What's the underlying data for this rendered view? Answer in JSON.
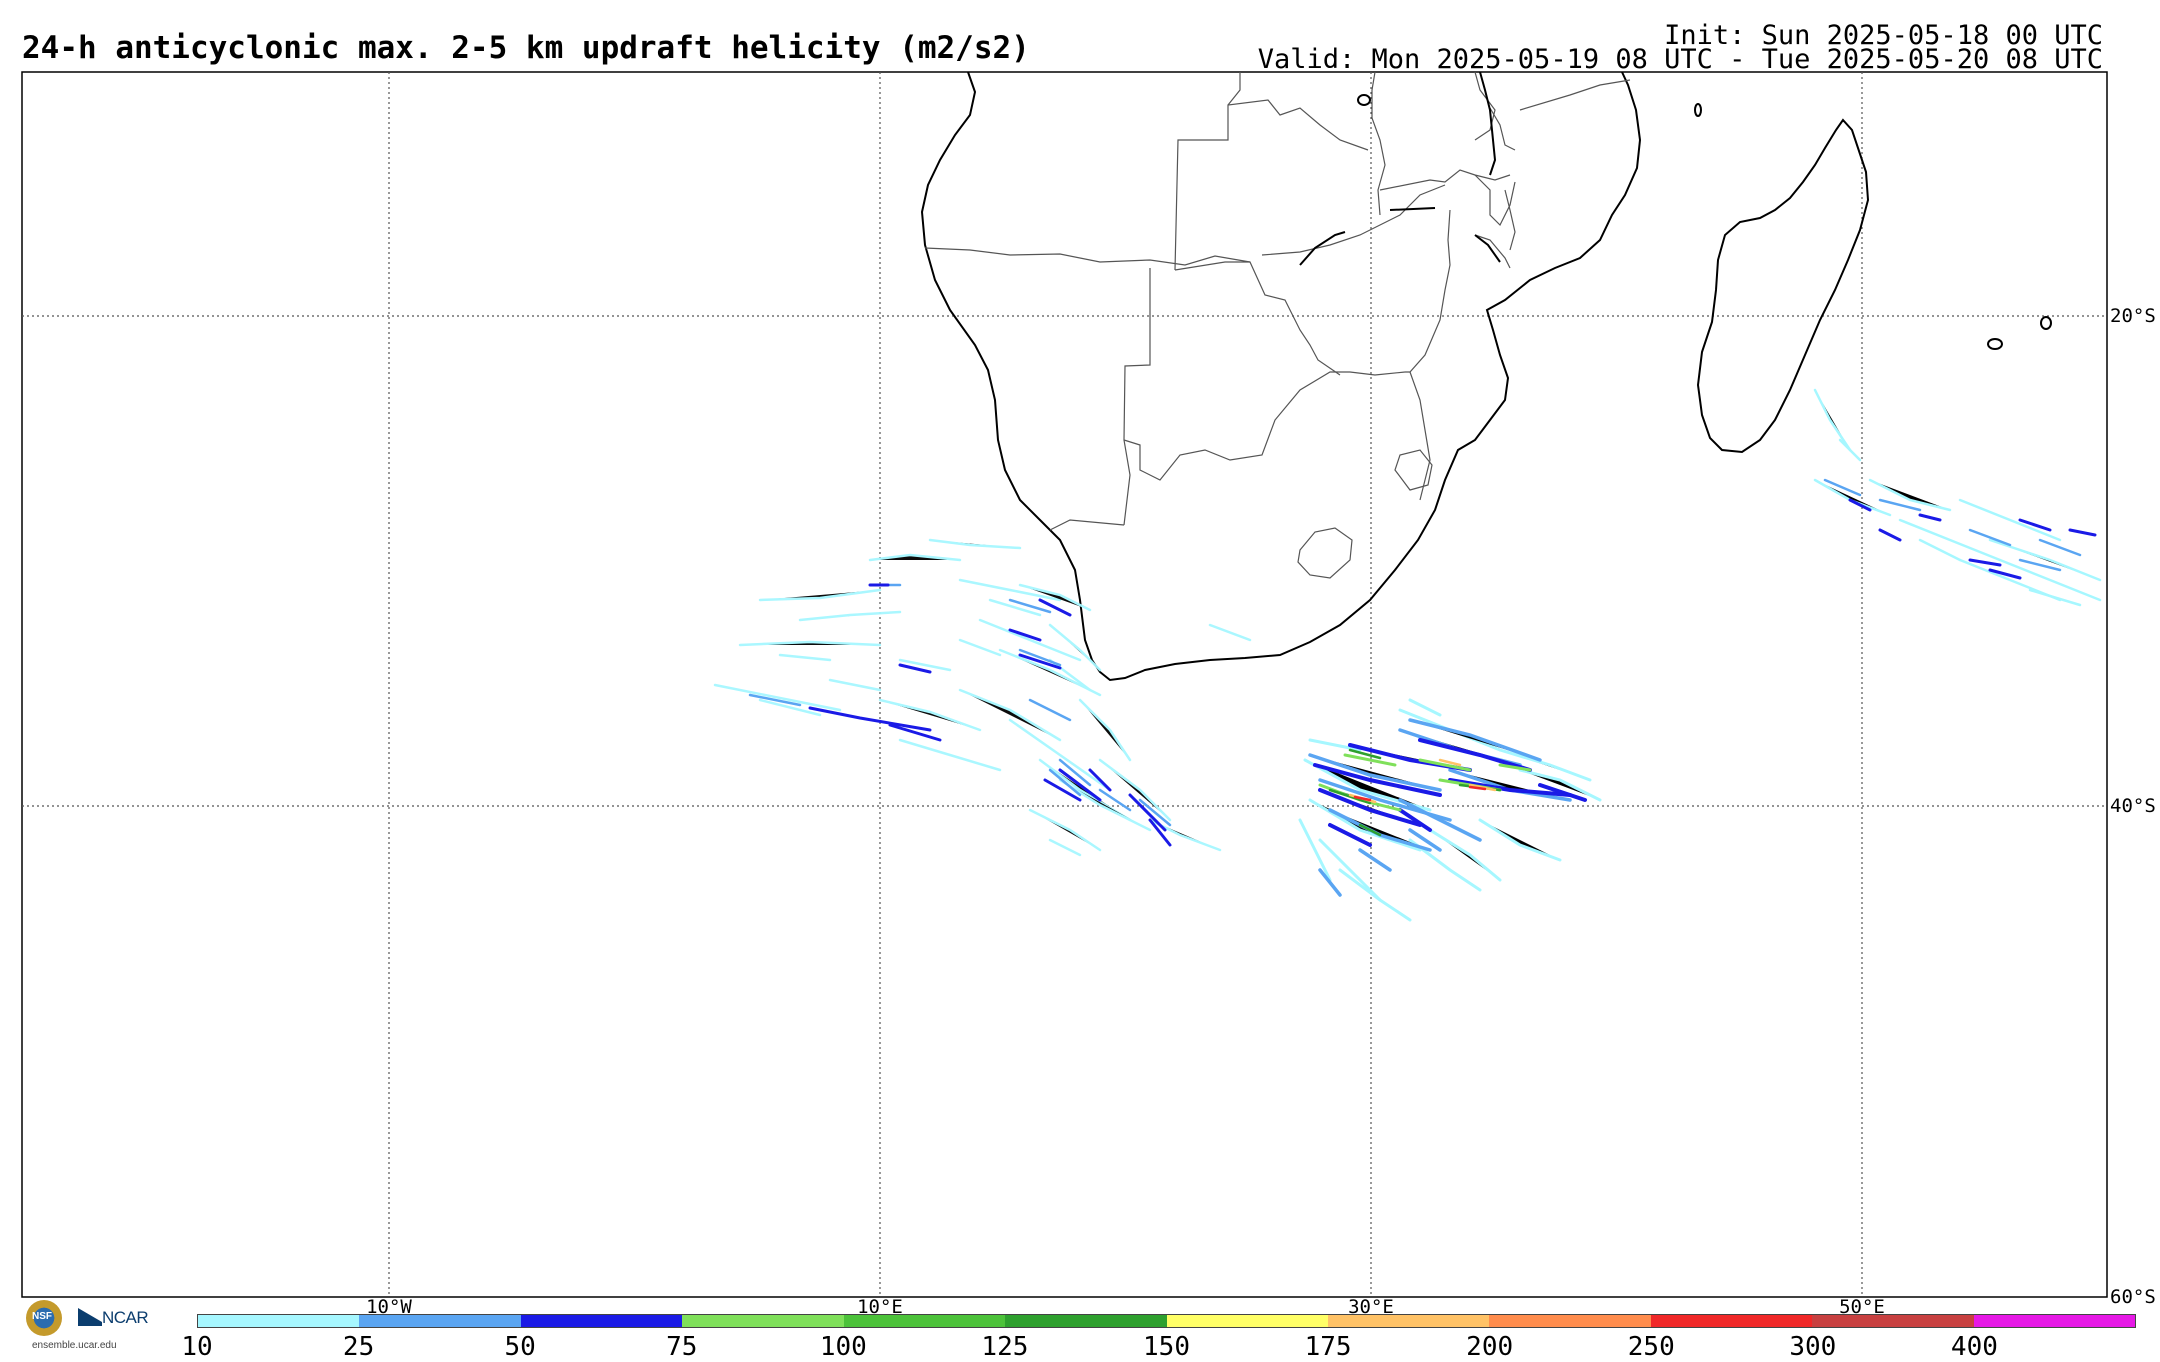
{
  "title": "24-h anticyclonic max. 2-5 km updraft helicity (m2/s2)",
  "init": "Init: Sun 2025-05-18 00 UTC",
  "valid": "Valid: Mon 2025-05-19 08 UTC - Tue 2025-05-20 08 UTC",
  "grid": {
    "lat_labels": [
      "20°S",
      "40°S",
      "60°S"
    ],
    "lon_labels": [
      "10°W",
      "10°E",
      "30°E",
      "50°E"
    ]
  },
  "colorbar": {
    "ticks": [
      "10",
      "25",
      "50",
      "75",
      "100",
      "125",
      "150",
      "175",
      "200",
      "250",
      "300",
      "400"
    ],
    "colors": [
      "#a6f7ff",
      "#5aa5f2",
      "#1a1ae6",
      "#7fe05a",
      "#4cc23a",
      "#2ea02e",
      "#ffff66",
      "#ffc266",
      "#ff8c4c",
      "#f02828",
      "#c84040",
      "#e619e6"
    ]
  },
  "logo": {
    "nsf": "NSF",
    "ncar": "NCAR",
    "url": "ensemble.ucar.edu"
  }
}
